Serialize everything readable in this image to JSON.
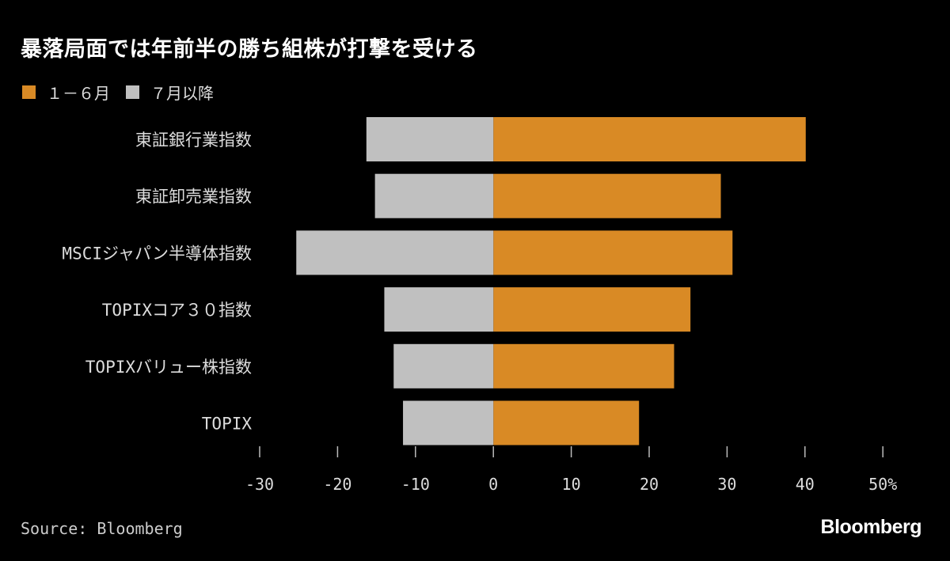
{
  "chart_data": {
    "type": "bar",
    "orientation": "horizontal",
    "stacked": "diverging",
    "title": "暴落局面では年前半の勝ち組株が打撃を受ける",
    "categories": [
      "東証銀行業指数",
      "東証卸売業指数",
      "MSCIジャパン半導体指数",
      "TOPIXコア３０指数",
      "TOPIXバリュー株指数",
      "TOPIX"
    ],
    "series": [
      {
        "name": "１－６月",
        "color": "#d98a25",
        "values": [
          40.1,
          29.2,
          30.7,
          25.3,
          23.2,
          18.7
        ]
      },
      {
        "name": "７月以降",
        "color": "#c0c0c0",
        "values": [
          -16.3,
          -15.2,
          -25.3,
          -14.0,
          -12.8,
          -11.6
        ]
      }
    ],
    "xlim": [
      -30,
      50
    ],
    "xticks": [
      "-30",
      "-20",
      "-10",
      "0",
      "10",
      "20",
      "30",
      "40",
      "50%"
    ],
    "xtick_values": [
      -30,
      -20,
      -10,
      0,
      10,
      20,
      30,
      40,
      50
    ],
    "grid": false,
    "legend_position": "top-left",
    "source": "Source: Bloomberg",
    "logo": "Bloomberg"
  }
}
